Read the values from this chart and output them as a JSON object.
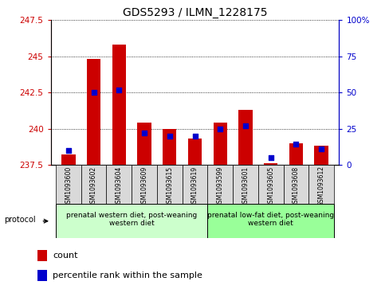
{
  "title": "GDS5293 / ILMN_1228175",
  "samples": [
    "GSM1093600",
    "GSM1093602",
    "GSM1093604",
    "GSM1093609",
    "GSM1093615",
    "GSM1093619",
    "GSM1093599",
    "GSM1093601",
    "GSM1093605",
    "GSM1093608",
    "GSM1093612"
  ],
  "count_values": [
    238.2,
    244.8,
    245.8,
    240.4,
    240.0,
    239.3,
    240.4,
    241.3,
    237.6,
    239.0,
    238.8
  ],
  "percentile_values": [
    10,
    50,
    52,
    22,
    20,
    20,
    25,
    27,
    5,
    14,
    11
  ],
  "ylim_left": [
    237.5,
    247.5
  ],
  "ylim_right": [
    0,
    100
  ],
  "yticks_left": [
    237.5,
    240.0,
    242.5,
    245.0,
    247.5
  ],
  "yticks_right": [
    0,
    25,
    50,
    75,
    100
  ],
  "ytick_labels_left": [
    "237.5",
    "240",
    "242.5",
    "245",
    "247.5"
  ],
  "ytick_labels_right": [
    "0",
    "25",
    "50",
    "75",
    "100%"
  ],
  "bar_bottom": 237.5,
  "red_color": "#cc0000",
  "blue_color": "#0000cc",
  "plot_bg": "#ffffff",
  "group1_label": "prenatal western diet, post-weaning\nwestern diet",
  "group2_label": "prenatal low-fat diet, post-weaning\nwestern diet",
  "group1_indices": [
    0,
    1,
    2,
    3,
    4,
    5
  ],
  "group2_indices": [
    6,
    7,
    8,
    9,
    10
  ],
  "group1_color": "#ccffcc",
  "group2_color": "#99ff99",
  "protocol_label": "protocol",
  "legend_count": "count",
  "legend_percentile": "percentile rank within the sample",
  "xtick_bg": "#d9d9d9"
}
